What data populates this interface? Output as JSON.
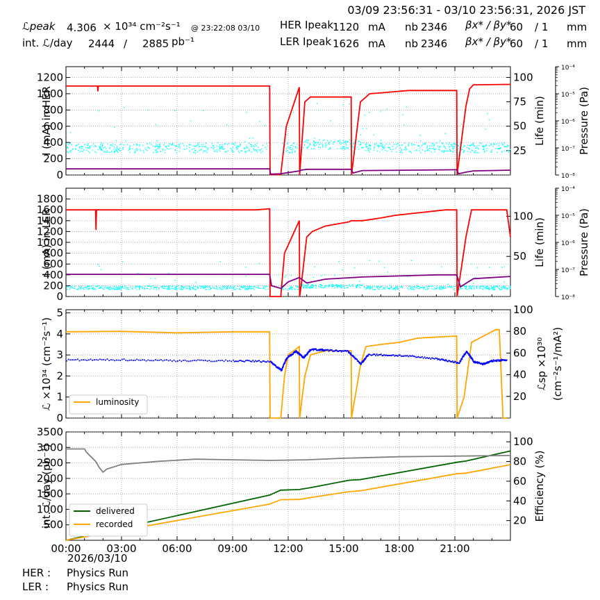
{
  "header": {
    "time_range": "03/09 23:56:31 - 03/10 23:56:31, 2026 JST",
    "lpeak_label": "ℒpeak",
    "lpeak_value": "4.306",
    "lpeak_unit": "× 10³⁴ cm⁻²s⁻¹",
    "lpeak_time": "@ 23:22:08 03/10",
    "intl_label": "int. ℒ/day",
    "intl_value": "2444",
    "intl_sep": "/",
    "intl_total": "2885",
    "intl_unit": "pb⁻¹",
    "her_label": "HER Ipeak",
    "her_value": "1120",
    "her_unit": "mA",
    "her_nb_label": "nb",
    "her_nb": "2346",
    "her_beta_label": "βx* / βy*",
    "her_beta_x": "60",
    "her_beta_y": "/ 1",
    "her_beta_unit": "mm",
    "ler_label": "LER Ipeak",
    "ler_value": "1626",
    "ler_unit": "mA",
    "ler_nb_label": "nb",
    "ler_nb": "2346",
    "ler_beta_label": "βx* / βy*",
    "ler_beta_x": "60",
    "ler_beta_y": "/ 1",
    "ler_beta_unit": "mm"
  },
  "footer": {
    "date": "2026/03/10",
    "her_status_label": "HER :",
    "her_status": "Physics Run",
    "ler_status_label": "LER :",
    "ler_status": "Physics Run"
  },
  "chart_data": [
    {
      "type": "line",
      "ylabel": "I (mA) in HER",
      "y2label": "Life (min)",
      "y3label": "Pressure (Pa)",
      "ylim": [
        0,
        1333
      ],
      "yticks": [
        0,
        200,
        400,
        600,
        800,
        1000,
        1200
      ],
      "y2lim": [
        0,
        111
      ],
      "y2ticks": [
        25,
        50,
        75,
        100
      ],
      "y3ticks": [
        "10⁻⁸",
        "10⁻⁷",
        "10⁻⁶",
        "10⁻⁵",
        "10⁻⁴"
      ],
      "xlim": [
        0,
        24
      ],
      "grid": true,
      "series": [
        {
          "color": "#ff0000",
          "x": [
            0,
            1.7,
            1.72,
            1.75,
            11,
            11.02,
            11.6,
            11.9,
            12.6,
            12.62,
            12.65,
            12.9,
            13.2,
            13.4,
            15.4,
            15.42,
            15.9,
            16.2,
            16.4,
            17.5,
            18.5,
            21.1,
            21.12,
            21.6,
            21.8,
            22,
            24
          ],
          "y": [
            1095,
            1095,
            1030,
            1095,
            1095,
            5,
            5,
            600,
            1080,
            5,
            100,
            900,
            960,
            960,
            960,
            5,
            900,
            960,
            1000,
            1020,
            1040,
            1040,
            5,
            850,
            1060,
            1110,
            1115
          ]
        },
        {
          "color": "#800080",
          "x": [
            0,
            11,
            11.05,
            11.6,
            12.6,
            12.7,
            13,
            15.4,
            15.5,
            16,
            21.1,
            21.2,
            21.6,
            22,
            24
          ],
          "y": [
            75,
            75,
            10,
            15,
            50,
            60,
            70,
            70,
            25,
            55,
            65,
            15,
            35,
            50,
            60
          ]
        }
      ]
    },
    {
      "type": "line",
      "ylabel": "I (mA) in LER",
      "y2label": "Life (min)",
      "y3label": "Pressure (Pa)",
      "ylim": [
        0,
        2000
      ],
      "yticks": [
        0,
        200,
        400,
        600,
        800,
        1000,
        1200,
        1400,
        1600,
        1800
      ],
      "y2lim": [
        0,
        135
      ],
      "y2ticks": [
        50,
        100
      ],
      "y3ticks": [
        "10⁻⁸",
        "10⁻⁷",
        "10⁻⁶",
        "10⁻⁵",
        "10⁻⁴"
      ],
      "xlim": [
        0,
        24
      ],
      "grid": true,
      "series": [
        {
          "color": "#ff0000",
          "x": [
            0,
            1.6,
            1.62,
            1.65,
            10.3,
            11,
            11.02,
            11.6,
            11.8,
            12.6,
            12.62,
            12.7,
            13,
            13.3,
            14,
            15.3,
            15.4,
            16,
            17,
            17.8,
            20.5,
            21.1,
            21.12,
            21.6,
            21.9,
            22,
            23.8,
            24
          ],
          "y": [
            1600,
            1600,
            1230,
            1600,
            1600,
            1620,
            0,
            0,
            800,
            1400,
            0,
            200,
            1100,
            1200,
            1300,
            1380,
            1400,
            1400,
            1450,
            1500,
            1600,
            1600,
            0,
            1100,
            1600,
            1600,
            1600,
            1100
          ]
        },
        {
          "color": "#800080",
          "x": [
            0,
            11,
            11.1,
            11.6,
            12,
            12.6,
            13,
            14,
            16,
            20,
            21.1,
            21.3,
            22,
            24
          ],
          "y": [
            410,
            410,
            200,
            150,
            270,
            350,
            250,
            320,
            360,
            400,
            400,
            180,
            330,
            370
          ]
        }
      ]
    },
    {
      "type": "line",
      "ylabel": "ℒ ×10³⁴ (cm⁻²s⁻¹)",
      "y2label": "ℒsp ×10³⁰ (cm⁻²s⁻¹/mA²)",
      "ylim": [
        0,
        5.15
      ],
      "yticks": [
        0,
        1,
        2,
        3,
        4,
        5
      ],
      "y2lim": [
        0,
        100
      ],
      "y2ticks": [
        20,
        40,
        60,
        80,
        100
      ],
      "xlim": [
        0,
        24
      ],
      "grid": true,
      "legend": "lower-left",
      "series": [
        {
          "name": "luminosity",
          "color": "#ffa500",
          "x": [
            0,
            3,
            6,
            9,
            11,
            11.02,
            11.6,
            11.8,
            12,
            12.6,
            12.62,
            12.9,
            13.2,
            14,
            15.3,
            15.4,
            15.42,
            15.9,
            16.2,
            17,
            18,
            19,
            21.1,
            21.12,
            21.5,
            21.9,
            23.2,
            23.4,
            23.6,
            23.8
          ],
          "y": [
            4.1,
            4.12,
            4.05,
            4.1,
            4.1,
            0,
            0,
            2,
            3,
            3.4,
            0,
            2,
            3,
            3.2,
            3.2,
            3.2,
            0,
            2.5,
            3.4,
            3.5,
            3.6,
            3.8,
            3.9,
            0,
            1,
            3.6,
            4.2,
            4.2,
            0,
            0
          ]
        },
        {
          "color": "#0000ff",
          "x": [
            0,
            3,
            6,
            9,
            11,
            11.6,
            11.9,
            12.4,
            12.8,
            13.2,
            14,
            15.2,
            15.9,
            16.3,
            18,
            20,
            21.2,
            21.6,
            22,
            22.5,
            23,
            23.8
          ],
          "y": [
            2.78,
            2.8,
            2.76,
            2.75,
            2.72,
            2.3,
            2.9,
            3.2,
            2.9,
            3.3,
            3.25,
            3.2,
            2.6,
            3.05,
            3,
            2.85,
            2.65,
            3.2,
            2.7,
            2.6,
            2.75,
            2.8
          ]
        }
      ]
    },
    {
      "type": "line",
      "ylabel": "int. ℒ/day (pb⁻¹)",
      "y2label": "Efficiency (%)",
      "ylim": [
        0,
        3500
      ],
      "yticks": [
        500,
        1000,
        1500,
        2000,
        2500,
        3000,
        3500
      ],
      "y2lim": [
        0,
        110
      ],
      "y2ticks": [
        20,
        40,
        60,
        80,
        100
      ],
      "xlim": [
        0,
        24
      ],
      "xticks": [
        "00:00",
        "03:00",
        "06:00",
        "09:00",
        "12:00",
        "15:00",
        "18:00",
        "21:00"
      ],
      "grid": true,
      "legend": "lower-left",
      "series": [
        {
          "name": "delivered",
          "color": "#006400",
          "x": [
            0,
            11,
            11.6,
            12.6,
            13.2,
            15.3,
            15.9,
            21.1,
            21.6,
            24
          ],
          "y": [
            0,
            1460,
            1620,
            1640,
            1700,
            1940,
            1960,
            2520,
            2560,
            2885
          ]
        },
        {
          "name": "recorded",
          "color": "#ffa500",
          "x": [
            0,
            11,
            11.6,
            12.6,
            13.2,
            15.3,
            15.9,
            21.1,
            21.6,
            24
          ],
          "y": [
            0,
            1170,
            1310,
            1320,
            1380,
            1570,
            1600,
            2150,
            2170,
            2444
          ]
        },
        {
          "color": "#808080",
          "x": [
            0,
            1,
            1.1,
            1.6,
            1.8,
            2,
            2.2,
            3,
            5,
            7,
            9,
            11,
            13,
            15,
            18,
            21,
            24
          ],
          "y": [
            2950,
            2950,
            2850,
            2550,
            2350,
            2200,
            2300,
            2450,
            2550,
            2620,
            2600,
            2580,
            2600,
            2650,
            2700,
            2720,
            2740
          ]
        }
      ]
    }
  ]
}
